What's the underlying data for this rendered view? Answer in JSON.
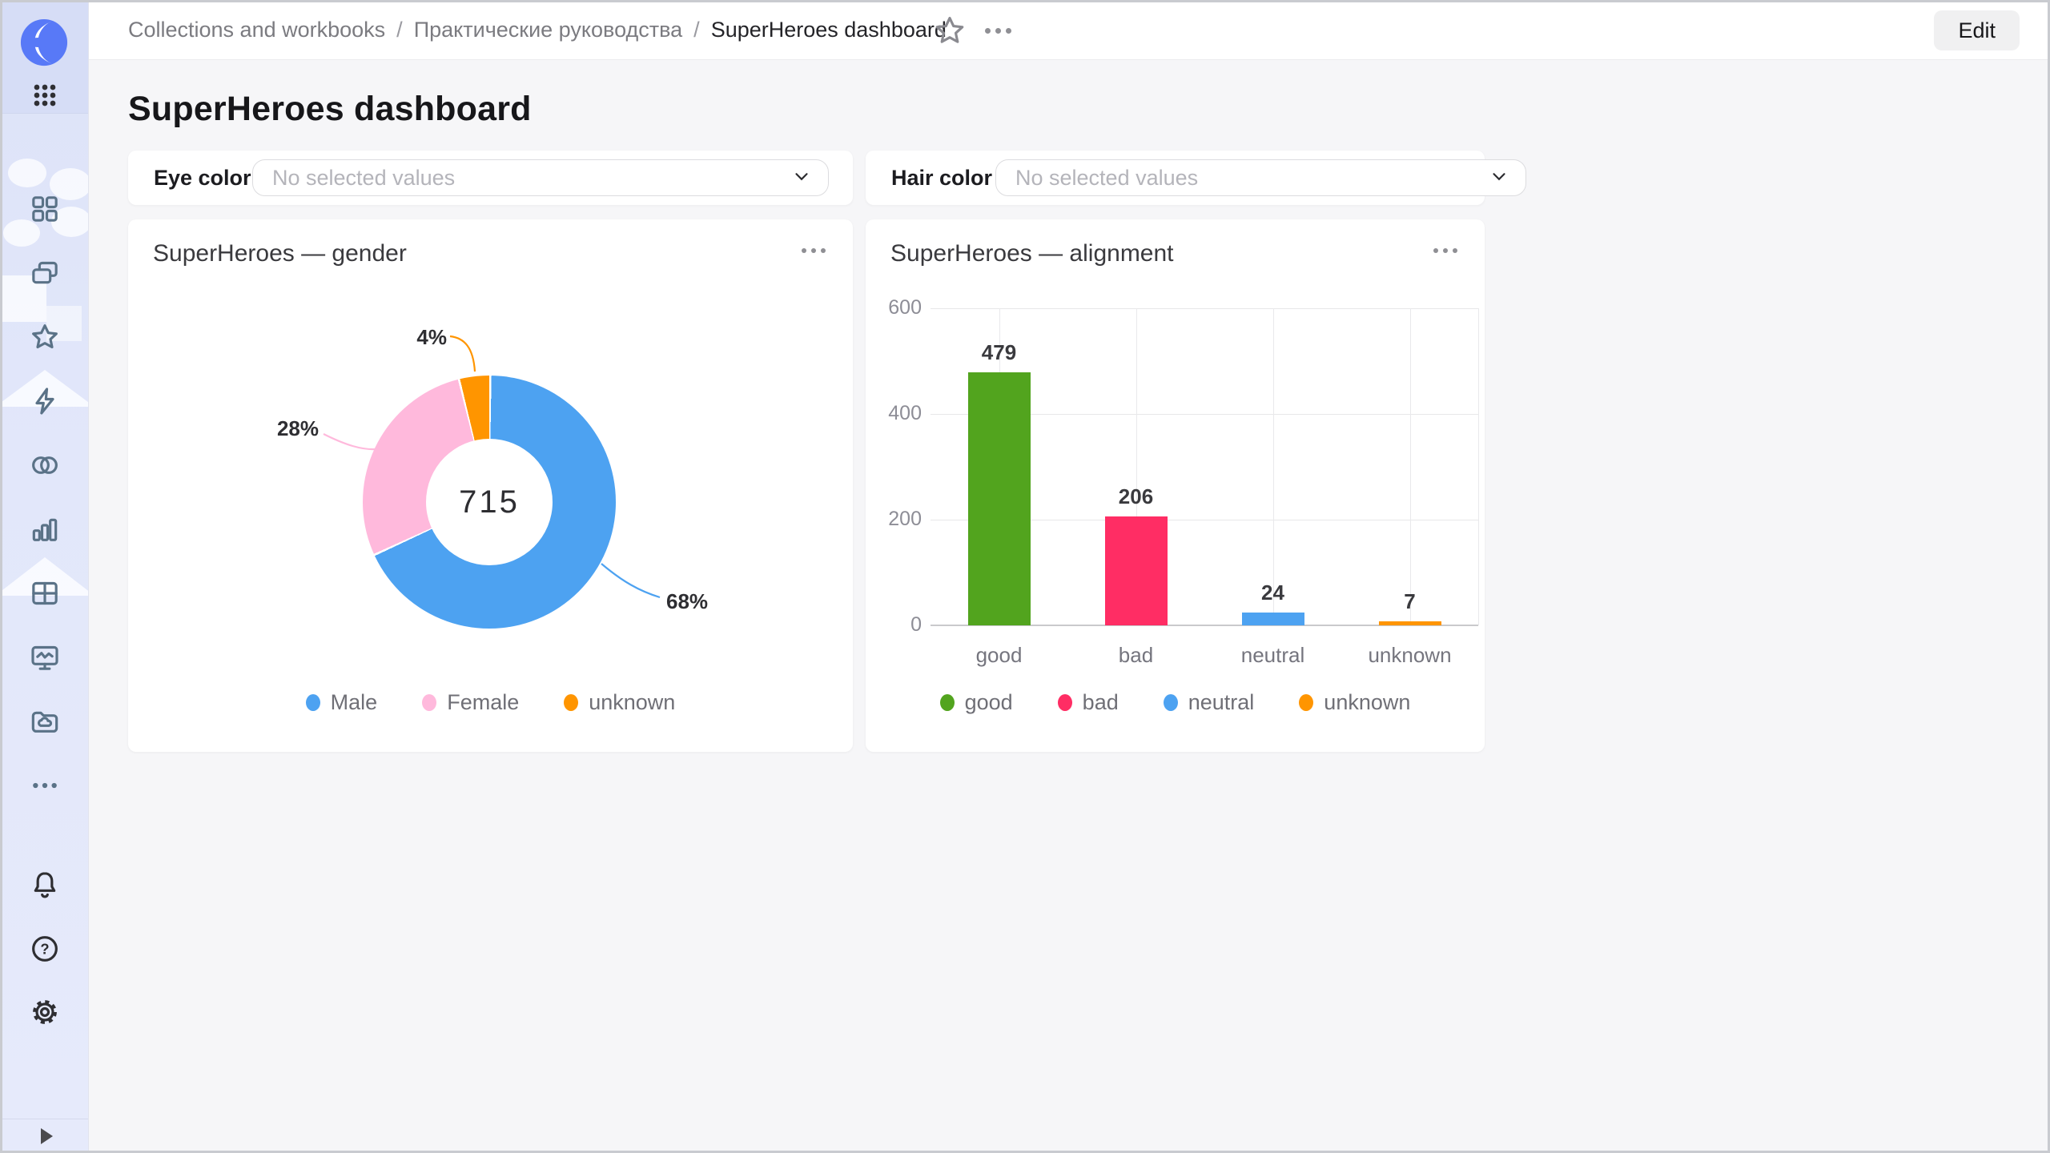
{
  "breadcrumb": {
    "items": [
      "Collections and workbooks",
      "Практические руководства",
      "SuperHeroes dashboard"
    ],
    "separator": "/"
  },
  "header": {
    "edit_label": "Edit",
    "icons": [
      "favorite-star-icon",
      "more-ellipsis-icon"
    ]
  },
  "page": {
    "title": "SuperHeroes dashboard"
  },
  "filters": [
    {
      "label": "Eye color",
      "placeholder": "No selected values"
    },
    {
      "label": "Hair color",
      "placeholder": "No selected values"
    }
  ],
  "sidebar": {
    "top_icons": [
      "datalens-logo",
      "apps-grid-icon"
    ],
    "nav_icons": [
      "dashboards-icon",
      "collections-icon",
      "favorites-star-icon",
      "connections-lightning-icon",
      "datasets-circles-icon",
      "charts-bars-icon",
      "tables-icon",
      "monitoring-screen-icon",
      "storage-folder-icon",
      "more-ellipsis-icon"
    ],
    "footer_icons": [
      "notifications-bell-icon",
      "help-circle-icon",
      "settings-gear-icon"
    ],
    "expand_icon": "expand-play-icon"
  },
  "chart_data": [
    {
      "type": "pie",
      "subtype": "donut",
      "title": "SuperHeroes — gender",
      "center_label": "715",
      "legend_position": "bottom",
      "series": [
        {
          "name": "Male",
          "percent": 68,
          "color": "#4DA2F1"
        },
        {
          "name": "Female",
          "percent": 28,
          "color": "#FFB9DC"
        },
        {
          "name": "unknown",
          "percent": 4,
          "color": "#FF9500"
        }
      ]
    },
    {
      "type": "bar",
      "title": "SuperHeroes — alignment",
      "categories": [
        "good",
        "bad",
        "neutral",
        "unknown"
      ],
      "values": [
        479,
        206,
        24,
        7
      ],
      "colors": [
        "#52A41E",
        "#FF2D64",
        "#4DA2F1",
        "#FF9500"
      ],
      "ylim": [
        0,
        600
      ],
      "yticks": [
        0,
        200,
        400,
        600
      ],
      "grid": true,
      "legend_position": "bottom",
      "legend": [
        "good",
        "bad",
        "neutral",
        "unknown"
      ]
    }
  ]
}
